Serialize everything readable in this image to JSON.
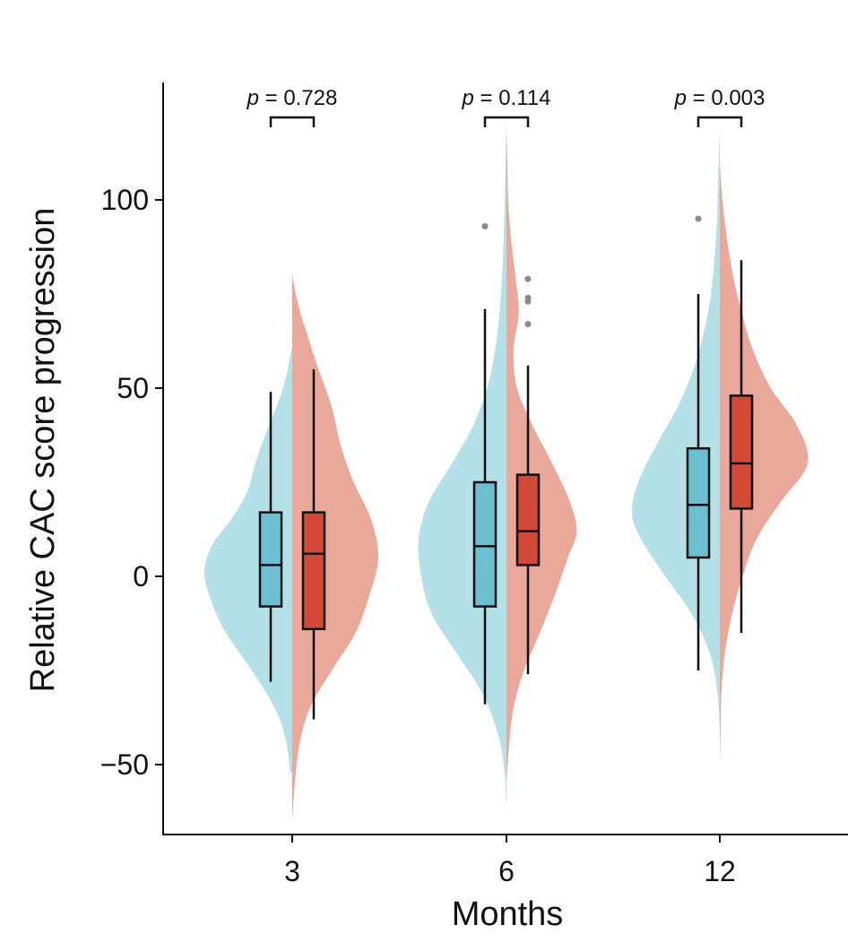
{
  "chart_data": {
    "type": "split-violin-boxplot",
    "xlabel": "Months",
    "ylabel": "Relative CAC score progression",
    "categories": [
      "3",
      "6",
      "12"
    ],
    "ylim": [
      -68,
      130
    ],
    "yticks": [
      100,
      50,
      0,
      -50
    ],
    "ytick_labels": [
      "100",
      "50",
      "0",
      "−50"
    ],
    "grid": false,
    "legend": "none",
    "colors": {
      "left_violin": "#b4e0e7",
      "left_box": "#6bbfd1",
      "right_violin": "#eaa89a",
      "right_box": "#d24a37",
      "outlier": "#8a8a8a"
    },
    "groups": [
      {
        "category": "3",
        "p_prefix": "p",
        "p_value": "= 0.728",
        "left": {
          "violin_range": [
            -52,
            60
          ],
          "violin_profile": [
            [
              -52,
              0.02
            ],
            [
              -45,
              0.06
            ],
            [
              -38,
              0.14
            ],
            [
              -30,
              0.32
            ],
            [
              -22,
              0.55
            ],
            [
              -14,
              0.78
            ],
            [
              -6,
              0.93
            ],
            [
              1,
              1.0
            ],
            [
              8,
              0.92
            ],
            [
              15,
              0.7
            ],
            [
              22,
              0.52
            ],
            [
              30,
              0.42
            ],
            [
              38,
              0.3
            ],
            [
              45,
              0.18
            ],
            [
              52,
              0.08
            ],
            [
              60,
              0.01
            ]
          ],
          "whisker_low": -28,
          "q1": -8,
          "median": 3,
          "q3": 17,
          "whisker_high": 49,
          "outliers": []
        },
        "right": {
          "violin_range": [
            -65,
            80
          ],
          "violin_profile": [
            [
              -65,
              0.0
            ],
            [
              -55,
              0.03
            ],
            [
              -45,
              0.08
            ],
            [
              -35,
              0.2
            ],
            [
              -25,
              0.45
            ],
            [
              -15,
              0.72
            ],
            [
              -5,
              0.88
            ],
            [
              5,
              0.98
            ],
            [
              15,
              0.9
            ],
            [
              25,
              0.7
            ],
            [
              35,
              0.55
            ],
            [
              45,
              0.45
            ],
            [
              55,
              0.3
            ],
            [
              65,
              0.16
            ],
            [
              72,
              0.07
            ],
            [
              80,
              0.0
            ]
          ],
          "whisker_low": -38,
          "q1": -14,
          "median": 6,
          "q3": 17,
          "whisker_high": 55,
          "outliers": []
        }
      },
      {
        "category": "6",
        "p_prefix": "p",
        "p_value": "= 0.114",
        "left": {
          "violin_range": [
            -62,
            120
          ],
          "violin_profile": [
            [
              -62,
              0.0
            ],
            [
              -50,
              0.03
            ],
            [
              -40,
              0.12
            ],
            [
              -30,
              0.3
            ],
            [
              -20,
              0.58
            ],
            [
              -10,
              0.85
            ],
            [
              0,
              0.97
            ],
            [
              10,
              1.0
            ],
            [
              20,
              0.88
            ],
            [
              30,
              0.62
            ],
            [
              40,
              0.38
            ],
            [
              50,
              0.22
            ],
            [
              60,
              0.13
            ],
            [
              70,
              0.08
            ],
            [
              80,
              0.05
            ],
            [
              90,
              0.03
            ],
            [
              100,
              0.02
            ],
            [
              110,
              0.01
            ],
            [
              120,
              0.0
            ]
          ],
          "whisker_low": -34,
          "q1": -8,
          "median": 8,
          "q3": 25,
          "whisker_high": 71,
          "outliers": [
            93
          ]
        },
        "right": {
          "violin_range": [
            -55,
            120
          ],
          "violin_profile": [
            [
              -55,
              0.0
            ],
            [
              -45,
              0.03
            ],
            [
              -35,
              0.08
            ],
            [
              -25,
              0.2
            ],
            [
              -15,
              0.38
            ],
            [
              -5,
              0.55
            ],
            [
              5,
              0.7
            ],
            [
              12,
              0.8
            ],
            [
              20,
              0.72
            ],
            [
              30,
              0.52
            ],
            [
              40,
              0.3
            ],
            [
              50,
              0.12
            ],
            [
              60,
              0.08
            ],
            [
              70,
              0.14
            ],
            [
              80,
              0.1
            ],
            [
              90,
              0.05
            ],
            [
              100,
              0.02
            ],
            [
              110,
              0.01
            ],
            [
              120,
              0.0
            ]
          ],
          "whisker_low": -26,
          "q1": 3,
          "median": 12,
          "q3": 27,
          "whisker_high": 56,
          "outliers": [
            67,
            73,
            74,
            79
          ]
        }
      },
      {
        "category": "12",
        "p_prefix": "p",
        "p_value": "= 0.003",
        "left": {
          "violin_range": [
            -40,
            118
          ],
          "violin_profile": [
            [
              -40,
              0.0
            ],
            [
              -30,
              0.03
            ],
            [
              -20,
              0.12
            ],
            [
              -10,
              0.32
            ],
            [
              0,
              0.62
            ],
            [
              10,
              0.9
            ],
            [
              17,
              1.0
            ],
            [
              25,
              0.93
            ],
            [
              35,
              0.72
            ],
            [
              45,
              0.48
            ],
            [
              55,
              0.3
            ],
            [
              65,
              0.18
            ],
            [
              75,
              0.1
            ],
            [
              85,
              0.06
            ],
            [
              95,
              0.03
            ],
            [
              105,
              0.02
            ],
            [
              118,
              0.0
            ]
          ],
          "whisker_low": -25,
          "q1": 5,
          "median": 19,
          "q3": 34,
          "whisker_high": 75,
          "outliers": [
            95
          ]
        },
        "right": {
          "violin_range": [
            -50,
            110
          ],
          "violin_profile": [
            [
              -50,
              0.0
            ],
            [
              -40,
              0.01
            ],
            [
              -30,
              0.02
            ],
            [
              -20,
              0.06
            ],
            [
              -10,
              0.14
            ],
            [
              0,
              0.26
            ],
            [
              10,
              0.42
            ],
            [
              20,
              0.7
            ],
            [
              30,
              1.0
            ],
            [
              40,
              0.88
            ],
            [
              50,
              0.58
            ],
            [
              60,
              0.38
            ],
            [
              70,
              0.25
            ],
            [
              80,
              0.15
            ],
            [
              90,
              0.08
            ],
            [
              100,
              0.03
            ],
            [
              110,
              0.0
            ]
          ],
          "whisker_low": -15,
          "q1": 18,
          "median": 30,
          "q3": 48,
          "whisker_high": 84,
          "outliers": []
        }
      }
    ]
  }
}
